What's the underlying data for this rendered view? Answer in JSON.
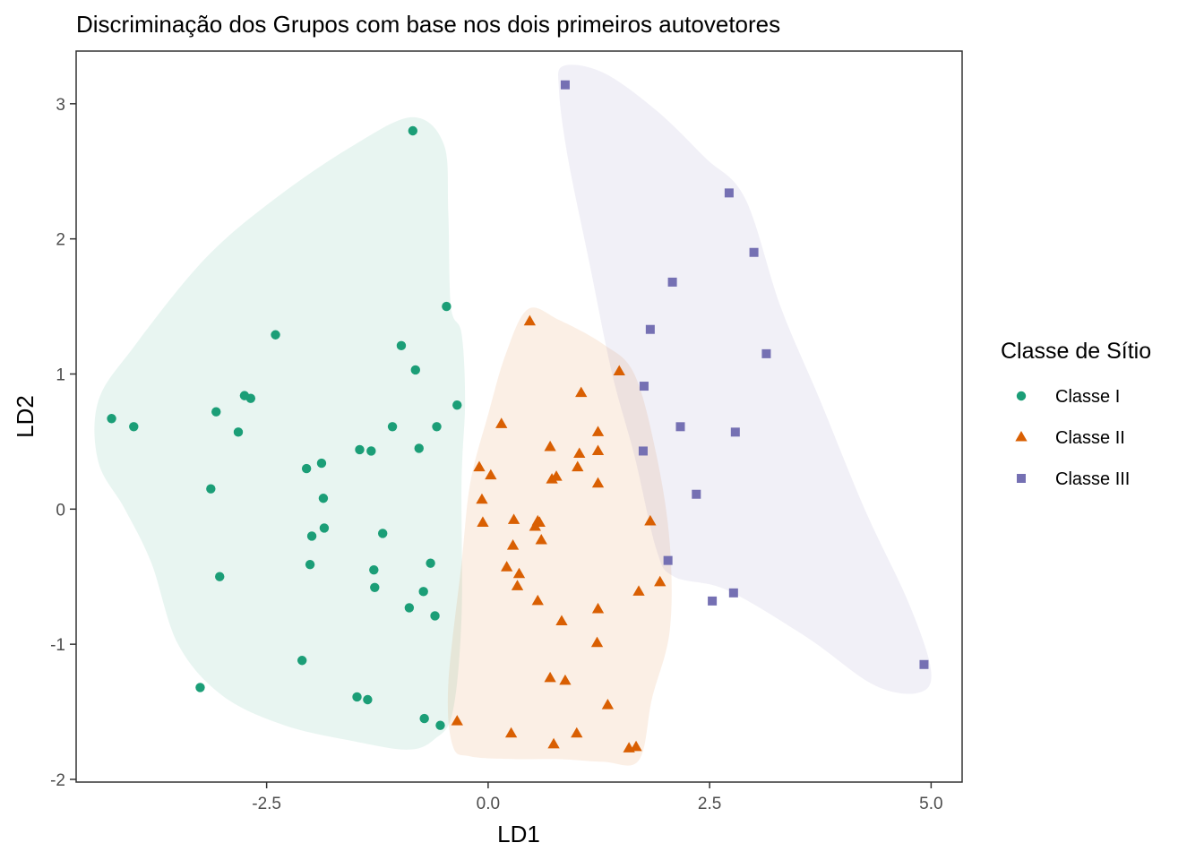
{
  "chart_data": {
    "type": "scatter",
    "title": "Discriminação dos Grupos com base nos dois primeiros autovetores",
    "xlabel": "LD1",
    "ylabel": "LD2",
    "xlim": [
      -4.65,
      5.35
    ],
    "ylim": [
      -2.02,
      3.39
    ],
    "x_ticks": [
      -2.5,
      0.0,
      2.5,
      5.0
    ],
    "x_tick_labels": [
      "-2.5",
      "0.0",
      "2.5",
      "5.0"
    ],
    "y_ticks": [
      -2,
      -1,
      0,
      1,
      2,
      3
    ],
    "y_tick_labels": [
      "-2",
      "-1",
      "0",
      "1",
      "2",
      "3"
    ],
    "grid": false,
    "legend": {
      "title": "Classe de Sítio",
      "position": "right"
    },
    "series": [
      {
        "name": "Classe I",
        "color": "#1b9e77",
        "marker": "circle",
        "hull": [
          [
            -0.85,
            2.9
          ],
          [
            -0.5,
            2.7
          ],
          [
            -0.45,
            2.2
          ],
          [
            -0.42,
            1.5
          ],
          [
            -0.3,
            1.3
          ],
          [
            -0.26,
            0.8
          ],
          [
            -0.3,
            0.2
          ],
          [
            -0.3,
            -0.8
          ],
          [
            -0.4,
            -1.5
          ],
          [
            -0.6,
            -1.7
          ],
          [
            -0.9,
            -1.78
          ],
          [
            -1.5,
            -1.72
          ],
          [
            -2.3,
            -1.6
          ],
          [
            -3.0,
            -1.38
          ],
          [
            -3.5,
            -1.0
          ],
          [
            -3.8,
            -0.4
          ],
          [
            -4.1,
            0.0
          ],
          [
            -4.4,
            0.35
          ],
          [
            -4.4,
            0.8
          ],
          [
            -4.0,
            1.2
          ],
          [
            -3.2,
            1.85
          ],
          [
            -2.4,
            2.3
          ],
          [
            -1.5,
            2.7
          ]
        ],
        "points": [
          {
            "x": -0.85,
            "y": 2.8
          },
          {
            "x": -2.4,
            "y": 1.29
          },
          {
            "x": -0.47,
            "y": 1.5
          },
          {
            "x": -0.98,
            "y": 1.21
          },
          {
            "x": -0.82,
            "y": 1.03
          },
          {
            "x": -4.25,
            "y": 0.67
          },
          {
            "x": -4.0,
            "y": 0.61
          },
          {
            "x": -3.07,
            "y": 0.72
          },
          {
            "x": -2.75,
            "y": 0.84
          },
          {
            "x": -2.68,
            "y": 0.82
          },
          {
            "x": -2.82,
            "y": 0.57
          },
          {
            "x": -0.35,
            "y": 0.77
          },
          {
            "x": -0.58,
            "y": 0.61
          },
          {
            "x": -1.08,
            "y": 0.61
          },
          {
            "x": -0.78,
            "y": 0.45
          },
          {
            "x": -1.45,
            "y": 0.44
          },
          {
            "x": -1.32,
            "y": 0.43
          },
          {
            "x": -1.88,
            "y": 0.34
          },
          {
            "x": -2.05,
            "y": 0.3
          },
          {
            "x": -3.13,
            "y": 0.15
          },
          {
            "x": -1.86,
            "y": 0.08
          },
          {
            "x": -1.85,
            "y": -0.14
          },
          {
            "x": -1.99,
            "y": -0.2
          },
          {
            "x": -1.19,
            "y": -0.18
          },
          {
            "x": -2.01,
            "y": -0.41
          },
          {
            "x": -1.29,
            "y": -0.45
          },
          {
            "x": -3.03,
            "y": -0.5
          },
          {
            "x": -0.65,
            "y": -0.4
          },
          {
            "x": -1.28,
            "y": -0.58
          },
          {
            "x": -0.73,
            "y": -0.61
          },
          {
            "x": -0.89,
            "y": -0.73
          },
          {
            "x": -0.6,
            "y": -0.79
          },
          {
            "x": -2.1,
            "y": -1.12
          },
          {
            "x": -3.25,
            "y": -1.32
          },
          {
            "x": -1.48,
            "y": -1.39
          },
          {
            "x": -1.36,
            "y": -1.41
          },
          {
            "x": -0.72,
            "y": -1.55
          },
          {
            "x": -0.54,
            "y": -1.6
          }
        ]
      },
      {
        "name": "Classe II",
        "color": "#d95f02",
        "marker": "triangle",
        "hull": [
          [
            0.45,
            1.48
          ],
          [
            0.8,
            1.4
          ],
          [
            1.3,
            1.22
          ],
          [
            1.65,
            1.0
          ],
          [
            1.9,
            0.4
          ],
          [
            2.05,
            -0.25
          ],
          [
            2.05,
            -0.9
          ],
          [
            1.85,
            -1.4
          ],
          [
            1.7,
            -1.86
          ],
          [
            1.3,
            -1.87
          ],
          [
            0.8,
            -1.85
          ],
          [
            0.3,
            -1.85
          ],
          [
            -0.2,
            -1.83
          ],
          [
            -0.4,
            -1.75
          ],
          [
            -0.45,
            -1.3
          ],
          [
            -0.3,
            -0.4
          ],
          [
            -0.2,
            0.2
          ],
          [
            0.0,
            0.7
          ],
          [
            0.2,
            1.15
          ]
        ],
        "points": [
          {
            "x": 0.47,
            "y": 1.39
          },
          {
            "x": 1.48,
            "y": 1.02
          },
          {
            "x": 1.05,
            "y": 0.86
          },
          {
            "x": 0.15,
            "y": 0.63
          },
          {
            "x": 1.24,
            "y": 0.57
          },
          {
            "x": 0.7,
            "y": 0.46
          },
          {
            "x": 1.03,
            "y": 0.41
          },
          {
            "x": 1.24,
            "y": 0.43
          },
          {
            "x": -0.1,
            "y": 0.31
          },
          {
            "x": 1.01,
            "y": 0.31
          },
          {
            "x": 0.72,
            "y": 0.22
          },
          {
            "x": 0.77,
            "y": 0.24
          },
          {
            "x": 0.03,
            "y": 0.25
          },
          {
            "x": 1.24,
            "y": 0.19
          },
          {
            "x": -0.07,
            "y": 0.07
          },
          {
            "x": -0.06,
            "y": -0.1
          },
          {
            "x": 0.29,
            "y": -0.08
          },
          {
            "x": 0.56,
            "y": -0.09
          },
          {
            "x": 0.58,
            "y": -0.1
          },
          {
            "x": 0.53,
            "y": -0.13
          },
          {
            "x": 1.83,
            "y": -0.09
          },
          {
            "x": 0.6,
            "y": -0.23
          },
          {
            "x": 0.28,
            "y": -0.27
          },
          {
            "x": 0.21,
            "y": -0.43
          },
          {
            "x": 0.35,
            "y": -0.48
          },
          {
            "x": 0.33,
            "y": -0.57
          },
          {
            "x": 1.94,
            "y": -0.54
          },
          {
            "x": 1.7,
            "y": -0.61
          },
          {
            "x": 0.56,
            "y": -0.68
          },
          {
            "x": 1.24,
            "y": -0.74
          },
          {
            "x": 0.83,
            "y": -0.83
          },
          {
            "x": 1.23,
            "y": -0.99
          },
          {
            "x": 0.7,
            "y": -1.25
          },
          {
            "x": 0.87,
            "y": -1.27
          },
          {
            "x": 1.35,
            "y": -1.45
          },
          {
            "x": -0.35,
            "y": -1.57
          },
          {
            "x": 0.26,
            "y": -1.66
          },
          {
            "x": 1.0,
            "y": -1.66
          },
          {
            "x": 0.74,
            "y": -1.74
          },
          {
            "x": 1.59,
            "y": -1.77
          },
          {
            "x": 1.67,
            "y": -1.76
          }
        ]
      },
      {
        "name": "Classe III",
        "color": "#7570b3",
        "marker": "square",
        "hull": [
          [
            0.85,
            3.28
          ],
          [
            1.3,
            3.23
          ],
          [
            1.9,
            2.95
          ],
          [
            2.45,
            2.6
          ],
          [
            2.9,
            2.3
          ],
          [
            3.3,
            1.5
          ],
          [
            3.75,
            0.8
          ],
          [
            4.25,
            0.0
          ],
          [
            4.75,
            -0.7
          ],
          [
            5.0,
            -1.2
          ],
          [
            4.85,
            -1.36
          ],
          [
            4.35,
            -1.3
          ],
          [
            3.6,
            -0.95
          ],
          [
            2.7,
            -0.6
          ],
          [
            2.1,
            -0.5
          ],
          [
            1.9,
            -0.3
          ],
          [
            1.65,
            0.4
          ],
          [
            1.4,
            1.0
          ],
          [
            1.15,
            1.8
          ],
          [
            0.9,
            2.6
          ],
          [
            0.8,
            3.1
          ]
        ],
        "points": [
          {
            "x": 0.87,
            "y": 3.14
          },
          {
            "x": 2.72,
            "y": 2.34
          },
          {
            "x": 3.0,
            "y": 1.9
          },
          {
            "x": 2.08,
            "y": 1.68
          },
          {
            "x": 1.83,
            "y": 1.33
          },
          {
            "x": 3.14,
            "y": 1.15
          },
          {
            "x": 1.76,
            "y": 0.91
          },
          {
            "x": 2.17,
            "y": 0.61
          },
          {
            "x": 2.79,
            "y": 0.57
          },
          {
            "x": 1.75,
            "y": 0.43
          },
          {
            "x": 2.35,
            "y": 0.11
          },
          {
            "x": 2.03,
            "y": -0.38
          },
          {
            "x": 2.53,
            "y": -0.68
          },
          {
            "x": 2.77,
            "y": -0.62
          },
          {
            "x": 4.92,
            "y": -1.15
          }
        ]
      }
    ]
  }
}
